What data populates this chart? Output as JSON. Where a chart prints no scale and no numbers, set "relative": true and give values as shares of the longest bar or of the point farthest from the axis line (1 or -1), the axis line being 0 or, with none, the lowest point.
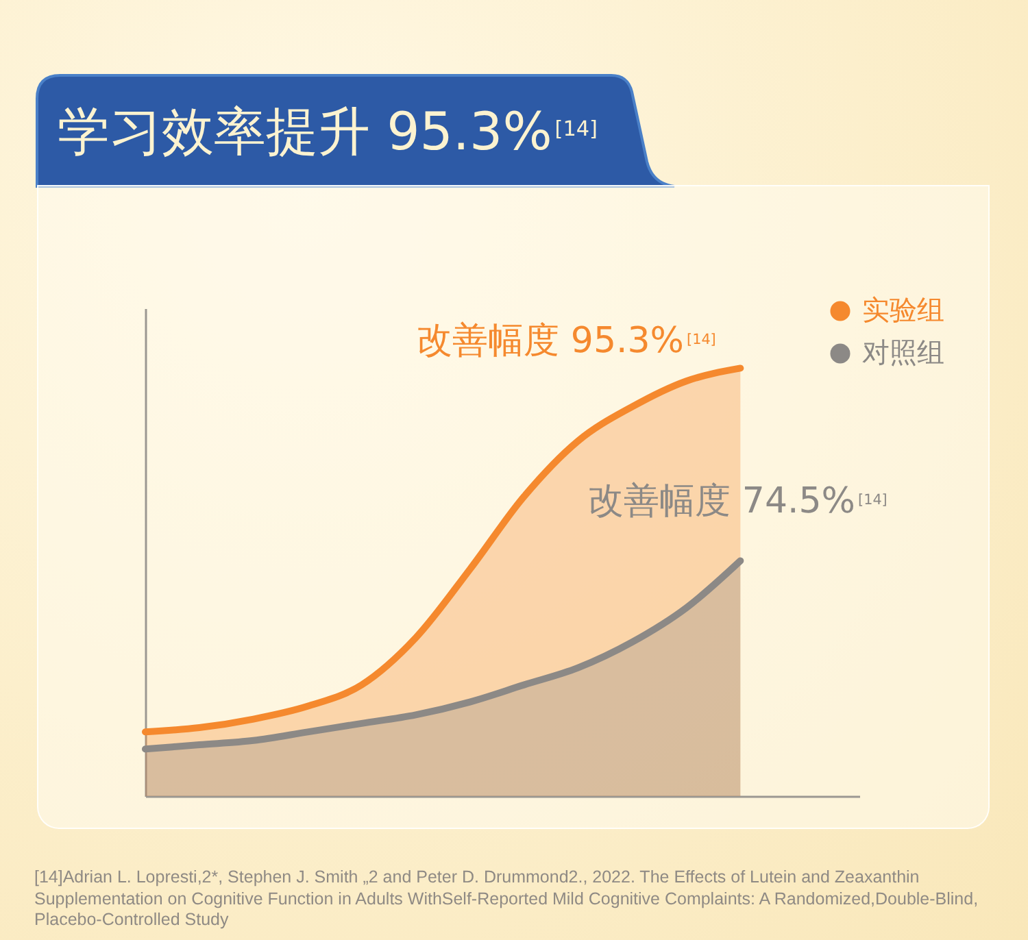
{
  "chart_data": {
    "type": "area",
    "title": "学习效率提升 95.3%$^{[14]}$",
    "relative": true,
    "categories": [
      null,
      null,
      null,
      null,
      null,
      null,
      null,
      null,
      null,
      null,
      null,
      null
    ],
    "series": [
      {
        "name": "实验组",
        "color": "#f5892e",
        "values": [
          0.15,
          0.16,
          0.18,
          0.21,
          0.26,
          0.37,
          0.53,
          0.7,
          0.83,
          0.91,
          0.97,
          1
        ]
      },
      {
        "name": "对照组",
        "color": "#8c8986",
        "values": [
          0.11,
          0.12,
          0.13,
          0.15,
          0.17,
          0.19,
          0.22,
          0.26,
          0.3,
          0.36,
          0.44,
          0.55
        ]
      }
    ],
    "legend": "top right",
    "annotations": [
      "改善幅度 95.3%$^{[14]}$",
      "改善幅度 74.5%$^{[14]}$",
      "[14]Adrian L. Lopresti,2*, Stephen J. Smith „2 and Peter D. Drummond2., 2022. The Effects of Lutein and Zeaxanthin Supplementation on Cognitive Function in Adults WithSelf-Reported Mild Cognitive Complaints: A Randomized,Double-Blind, Placebo-Controlled Study"
    ]
  }
}
